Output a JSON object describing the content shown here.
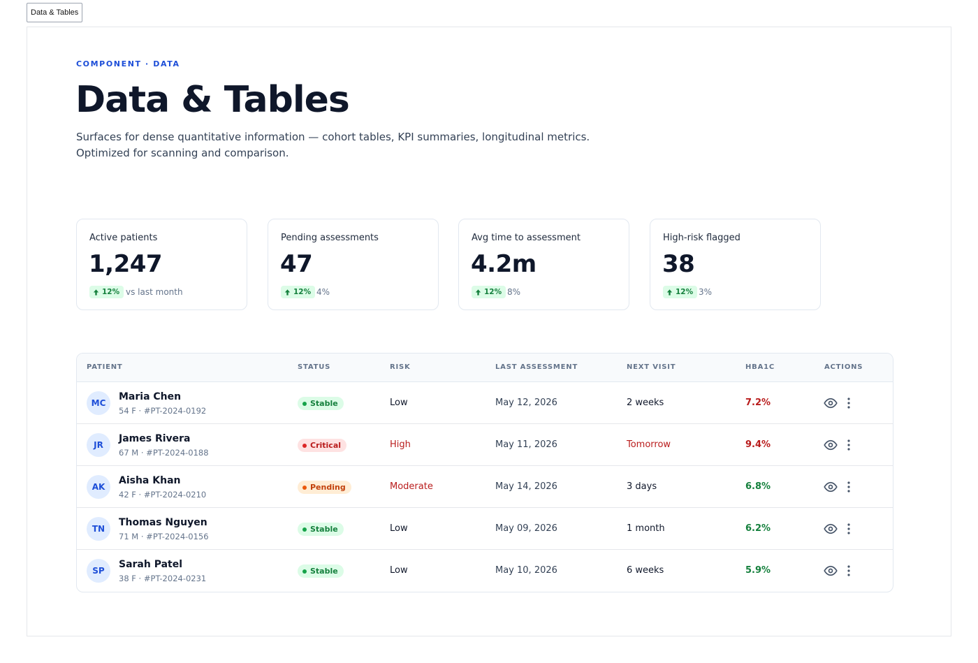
{
  "tab": {
    "label": "Data & Tables"
  },
  "header": {
    "eyebrow": "COMPONENT · DATA",
    "title": "Data & Tables",
    "description_line1": "Surfaces for dense quantitative information — cohort tables, KPI summaries, longitudinal metrics.",
    "description_line2": "Optimized for scanning and comparison."
  },
  "kpis": [
    {
      "label": "Active patients",
      "value": "1,247",
      "delta": "12%",
      "compare": "vs last month"
    },
    {
      "label": "Pending assessments",
      "value": "47",
      "delta": "12%",
      "compare": "4%"
    },
    {
      "label": "Avg time to assessment",
      "value": "4.2m",
      "delta": "12%",
      "compare": "8%"
    },
    {
      "label": "High-risk flagged",
      "value": "38",
      "delta": "12%",
      "compare": "3%"
    }
  ],
  "table": {
    "columns": [
      "PATIENT",
      "STATUS",
      "RISK",
      "LAST ASSESSMENT",
      "NEXT VISIT",
      "HBA1C",
      "ACTIONS"
    ],
    "rows": [
      {
        "initials": "MC",
        "name": "Maria Chen",
        "meta": "54 F · #PT-2024-0192",
        "status": "Stable",
        "risk": "Low",
        "last": "May 12, 2026",
        "next": "2 weeks",
        "hba1c": "7.2%"
      },
      {
        "initials": "JR",
        "name": "James Rivera",
        "meta": "67 M · #PT-2024-0188",
        "status": "Critical",
        "risk": "High",
        "last": "May 11, 2026",
        "next": "Tomorrow",
        "hba1c": "9.4%"
      },
      {
        "initials": "AK",
        "name": "Aisha Khan",
        "meta": "42 F · #PT-2024-0210",
        "status": "Pending",
        "risk": "Moderate",
        "last": "May 14, 2026",
        "next": "3 days",
        "hba1c": "6.8%"
      },
      {
        "initials": "TN",
        "name": "Thomas Nguyen",
        "meta": "71 M · #PT-2024-0156",
        "status": "Stable",
        "risk": "Low",
        "last": "May 09, 2026",
        "next": "1 month",
        "hba1c": "6.2%"
      },
      {
        "initials": "SP",
        "name": "Sarah Patel",
        "meta": "38 F · #PT-2024-0231",
        "status": "Stable",
        "risk": "Low",
        "last": "May 10, 2026",
        "next": "6 weeks",
        "hba1c": "5.9%"
      }
    ],
    "actions": {
      "view_icon": "eye-icon",
      "more_icon": "more-vertical-icon"
    }
  },
  "colors": {
    "accent": "#1d4ed8",
    "positive": "#15803d",
    "negative": "#b91c1c",
    "warning": "#c2410c"
  }
}
